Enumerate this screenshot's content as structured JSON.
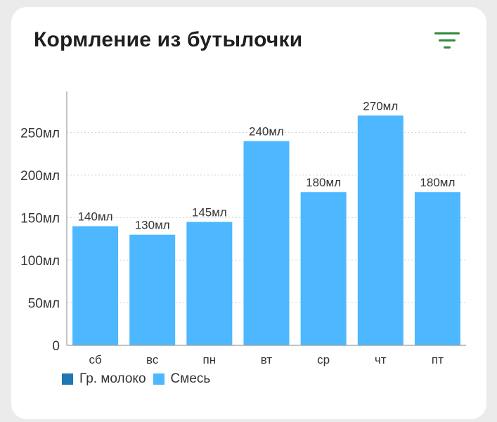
{
  "card": {
    "title": "Кормление из бутылочки",
    "filter_icon": "filter-icon"
  },
  "colors": {
    "filter_icon": "#2e8b3a",
    "series_breast_milk": "#1f77b4",
    "series_formula": "#4db8ff",
    "axis": "#9e9e9e",
    "grid": "#d6d6d6",
    "text": "#333333"
  },
  "chart_data": {
    "type": "bar",
    "stacked": true,
    "categories": [
      "сб",
      "вс",
      "пн",
      "вт",
      "ср",
      "чт",
      "пт"
    ],
    "series": [
      {
        "name": "Гр. молоко",
        "values": [
          0,
          0,
          0,
          0,
          0,
          0,
          0
        ]
      },
      {
        "name": "Смесь",
        "values": [
          140,
          130,
          145,
          240,
          180,
          270,
          180
        ]
      }
    ],
    "data_labels": [
      "140мл",
      "130мл",
      "145мл",
      "240мл",
      "180мл",
      "270мл",
      "180мл"
    ],
    "y_ticks": [
      0,
      50,
      100,
      150,
      200,
      250
    ],
    "y_tick_labels": [
      "0",
      "50мл",
      "100мл",
      "150мл",
      "200мл",
      "250мл"
    ],
    "ylim": [
      0,
      300
    ],
    "grid": true,
    "legend_position": "bottom-left",
    "xlabel": "",
    "ylabel": ""
  }
}
